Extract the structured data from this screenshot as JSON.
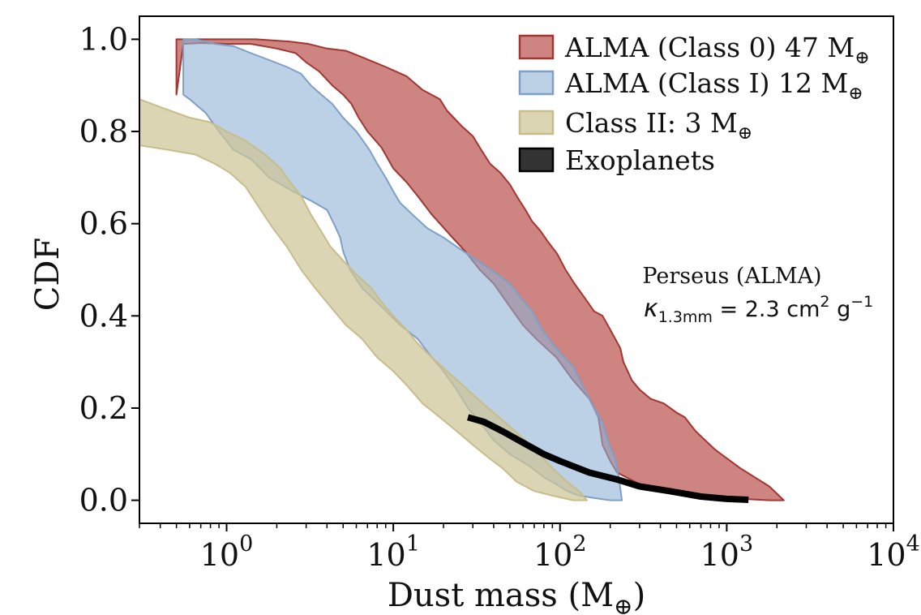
{
  "chart_data": {
    "type": "area",
    "xscale": "log",
    "xlim": [
      0.3,
      10000
    ],
    "ylim": [
      -0.05,
      1.05
    ],
    "xlabel": "Dust mass (M",
    "xlabel_sub": "⊕",
    "xlabel_close": ")",
    "ylabel": "CDF",
    "x_ticks": [
      {
        "value": 1,
        "base": "10",
        "exp": "0"
      },
      {
        "value": 10,
        "base": "10",
        "exp": "1"
      },
      {
        "value": 100,
        "base": "10",
        "exp": "2"
      },
      {
        "value": 1000,
        "base": "10",
        "exp": "3"
      },
      {
        "value": 10000,
        "base": "10",
        "exp": "4"
      }
    ],
    "y_ticks": [
      {
        "value": 0.0,
        "label": "0.0"
      },
      {
        "value": 0.2,
        "label": "0.2"
      },
      {
        "value": 0.4,
        "label": "0.4"
      },
      {
        "value": 0.6,
        "label": "0.6"
      },
      {
        "value": 0.8,
        "label": "0.8"
      },
      {
        "value": 1.0,
        "label": "1.0"
      }
    ],
    "legend_position": "top-right",
    "annotation": {
      "line1": "Perseus (ALMA)",
      "kappa": "κ",
      "kappa_sub": "1.3mm",
      "eq": " = 2.3 cm",
      "sq": "2",
      "unit": " g",
      "unit_exp": "−1"
    },
    "series": [
      {
        "name": "ALMA (Class 0) 47 M",
        "name_sub": "⊕",
        "fill": "#b4443e",
        "edge": "#a33630",
        "opacity": 0.65,
        "upper": [
          [
            0.5,
            1.0
          ],
          [
            1.5,
            1.0
          ],
          [
            2.4,
            0.995
          ],
          [
            3.1,
            0.99
          ],
          [
            4.0,
            0.98
          ],
          [
            5.2,
            0.975
          ],
          [
            6.6,
            0.96
          ],
          [
            9.0,
            0.94
          ],
          [
            12,
            0.92
          ],
          [
            15,
            0.89
          ],
          [
            19,
            0.87
          ],
          [
            21,
            0.845
          ],
          [
            23,
            0.83
          ],
          [
            26,
            0.81
          ],
          [
            30,
            0.79
          ],
          [
            33,
            0.765
          ],
          [
            38,
            0.73
          ],
          [
            44,
            0.71
          ],
          [
            50,
            0.685
          ],
          [
            56,
            0.655
          ],
          [
            62,
            0.63
          ],
          [
            68,
            0.605
          ],
          [
            76,
            0.585
          ],
          [
            85,
            0.56
          ],
          [
            96,
            0.535
          ],
          [
            108,
            0.5
          ],
          [
            122,
            0.47
          ],
          [
            140,
            0.44
          ],
          [
            160,
            0.41
          ],
          [
            180,
            0.4
          ],
          [
            200,
            0.37
          ],
          [
            230,
            0.33
          ],
          [
            240,
            0.3
          ],
          [
            270,
            0.26
          ],
          [
            300,
            0.24
          ],
          [
            350,
            0.22
          ],
          [
            420,
            0.21
          ],
          [
            500,
            0.19
          ],
          [
            560,
            0.18
          ],
          [
            650,
            0.15
          ],
          [
            850,
            0.11
          ],
          [
            1200,
            0.07
          ],
          [
            1800,
            0.03
          ],
          [
            2200,
            0.0
          ]
        ],
        "lower": [
          [
            2200,
            0.0
          ],
          [
            1800,
            0.0
          ],
          [
            1000,
            0.005
          ],
          [
            600,
            0.01
          ],
          [
            400,
            0.02
          ],
          [
            300,
            0.035
          ],
          [
            250,
            0.05
          ],
          [
            220,
            0.06
          ],
          [
            200,
            0.085
          ],
          [
            180,
            0.12
          ],
          [
            170,
            0.18
          ],
          [
            150,
            0.22
          ],
          [
            120,
            0.26
          ],
          [
            95,
            0.31
          ],
          [
            72,
            0.35
          ],
          [
            60,
            0.38
          ],
          [
            50,
            0.42
          ],
          [
            40,
            0.47
          ],
          [
            33,
            0.5
          ],
          [
            27,
            0.54
          ],
          [
            22,
            0.575
          ],
          [
            17,
            0.62
          ],
          [
            14,
            0.66
          ],
          [
            12,
            0.69
          ],
          [
            10,
            0.72
          ],
          [
            8.5,
            0.765
          ],
          [
            7.0,
            0.8
          ],
          [
            6.2,
            0.83
          ],
          [
            5.6,
            0.86
          ],
          [
            5.0,
            0.88
          ],
          [
            4.3,
            0.9
          ],
          [
            3.6,
            0.93
          ],
          [
            3.0,
            0.95
          ],
          [
            2.6,
            0.97
          ],
          [
            2.0,
            0.98
          ],
          [
            1.4,
            0.99
          ],
          [
            1.0,
            0.99
          ],
          [
            0.7,
            0.992
          ],
          [
            0.55,
            0.99
          ],
          [
            0.5,
            0.88
          ]
        ]
      },
      {
        "name": "ALMA (Class I) 12 M",
        "name_sub": "⊕",
        "fill": "#8fb0d6",
        "edge": "#7ea0c8",
        "opacity": 0.6,
        "upper": [
          [
            0.55,
            1.0
          ],
          [
            0.65,
            1.0
          ],
          [
            0.85,
            0.99
          ],
          [
            1.1,
            0.985
          ],
          [
            1.4,
            0.97
          ],
          [
            1.8,
            0.955
          ],
          [
            2.3,
            0.94
          ],
          [
            2.8,
            0.925
          ],
          [
            3.2,
            0.9
          ],
          [
            3.7,
            0.88
          ],
          [
            4.3,
            0.86
          ],
          [
            5.0,
            0.83
          ],
          [
            6.0,
            0.8
          ],
          [
            7.2,
            0.76
          ],
          [
            8.0,
            0.73
          ],
          [
            9.0,
            0.7
          ],
          [
            10,
            0.67
          ],
          [
            11,
            0.645
          ],
          [
            13,
            0.62
          ],
          [
            16,
            0.59
          ],
          [
            20,
            0.57
          ],
          [
            24,
            0.55
          ],
          [
            29,
            0.53
          ],
          [
            35,
            0.51
          ],
          [
            42,
            0.49
          ],
          [
            50,
            0.47
          ],
          [
            58,
            0.44
          ],
          [
            68,
            0.41
          ],
          [
            78,
            0.37
          ],
          [
            90,
            0.34
          ],
          [
            100,
            0.32
          ],
          [
            120,
            0.29
          ],
          [
            140,
            0.24
          ],
          [
            160,
            0.2
          ],
          [
            180,
            0.17
          ],
          [
            190,
            0.14
          ],
          [
            200,
            0.115
          ],
          [
            215,
            0.09
          ],
          [
            225,
            0.05
          ],
          [
            235,
            0.0
          ]
        ],
        "lower": [
          [
            235,
            0.0
          ],
          [
            200,
            0.0
          ],
          [
            160,
            0.005
          ],
          [
            130,
            0.01
          ],
          [
            110,
            0.02
          ],
          [
            95,
            0.035
          ],
          [
            80,
            0.05
          ],
          [
            65,
            0.075
          ],
          [
            50,
            0.1
          ],
          [
            40,
            0.13
          ],
          [
            33,
            0.17
          ],
          [
            28,
            0.2
          ],
          [
            24,
            0.24
          ],
          [
            20,
            0.28
          ],
          [
            17,
            0.31
          ],
          [
            14,
            0.35
          ],
          [
            11,
            0.38
          ],
          [
            8.5,
            0.42
          ],
          [
            6.5,
            0.46
          ],
          [
            5.5,
            0.5
          ],
          [
            5.0,
            0.54
          ],
          [
            4.8,
            0.57
          ],
          [
            4.4,
            0.6
          ],
          [
            4.0,
            0.63
          ],
          [
            3.2,
            0.65
          ],
          [
            2.5,
            0.67
          ],
          [
            1.8,
            0.7
          ],
          [
            1.4,
            0.74
          ],
          [
            1.1,
            0.76
          ],
          [
            0.9,
            0.8
          ],
          [
            0.75,
            0.84
          ],
          [
            0.6,
            0.87
          ],
          [
            0.55,
            0.88
          ]
        ]
      },
      {
        "name": "Class II: 3 M",
        "name_sub": "⊕",
        "fill": "#cfc596",
        "edge": "#c7bd8a",
        "opacity": 0.72,
        "upper": [
          [
            0.3,
            0.87
          ],
          [
            0.42,
            0.85
          ],
          [
            0.6,
            0.83
          ],
          [
            0.8,
            0.82
          ],
          [
            1.0,
            0.8
          ],
          [
            1.3,
            0.78
          ],
          [
            1.7,
            0.75
          ],
          [
            2.1,
            0.72
          ],
          [
            2.4,
            0.69
          ],
          [
            2.8,
            0.66
          ],
          [
            3.2,
            0.62
          ],
          [
            3.6,
            0.59
          ],
          [
            4.2,
            0.55
          ],
          [
            5.0,
            0.52
          ],
          [
            6.0,
            0.49
          ],
          [
            7.4,
            0.46
          ],
          [
            8.5,
            0.43
          ],
          [
            10,
            0.4
          ],
          [
            12,
            0.37
          ],
          [
            14,
            0.34
          ],
          [
            17,
            0.31
          ],
          [
            21,
            0.28
          ],
          [
            26,
            0.25
          ],
          [
            32,
            0.22
          ],
          [
            40,
            0.19
          ],
          [
            50,
            0.16
          ],
          [
            62,
            0.13
          ],
          [
            75,
            0.1
          ],
          [
            90,
            0.07
          ],
          [
            110,
            0.04
          ],
          [
            130,
            0.02
          ],
          [
            145,
            0.0
          ]
        ],
        "lower": [
          [
            145,
            0.0
          ],
          [
            120,
            0.0
          ],
          [
            90,
            0.01
          ],
          [
            70,
            0.02
          ],
          [
            55,
            0.04
          ],
          [
            45,
            0.07
          ],
          [
            38,
            0.09
          ],
          [
            30,
            0.12
          ],
          [
            24,
            0.15
          ],
          [
            19,
            0.18
          ],
          [
            15,
            0.21
          ],
          [
            12,
            0.25
          ],
          [
            10,
            0.28
          ],
          [
            8.0,
            0.31
          ],
          [
            6.5,
            0.35
          ],
          [
            5.2,
            0.38
          ],
          [
            4.2,
            0.42
          ],
          [
            3.4,
            0.46
          ],
          [
            2.8,
            0.5
          ],
          [
            2.3,
            0.55
          ],
          [
            1.9,
            0.59
          ],
          [
            1.6,
            0.63
          ],
          [
            1.3,
            0.68
          ],
          [
            1.05,
            0.71
          ],
          [
            0.85,
            0.73
          ],
          [
            0.65,
            0.75
          ],
          [
            0.45,
            0.76
          ],
          [
            0.3,
            0.77
          ]
        ]
      },
      {
        "name": "Exoplanets",
        "fill": "#333333",
        "edge": "#000000",
        "opacity": 1,
        "line": [
          [
            28,
            0.18
          ],
          [
            35,
            0.17
          ],
          [
            45,
            0.15
          ],
          [
            60,
            0.125
          ],
          [
            80,
            0.1
          ],
          [
            100,
            0.085
          ],
          [
            150,
            0.06
          ],
          [
            220,
            0.045
          ],
          [
            300,
            0.03
          ],
          [
            450,
            0.02
          ],
          [
            700,
            0.008
          ],
          [
            1000,
            0.003
          ],
          [
            1350,
            0.001
          ]
        ]
      }
    ]
  }
}
